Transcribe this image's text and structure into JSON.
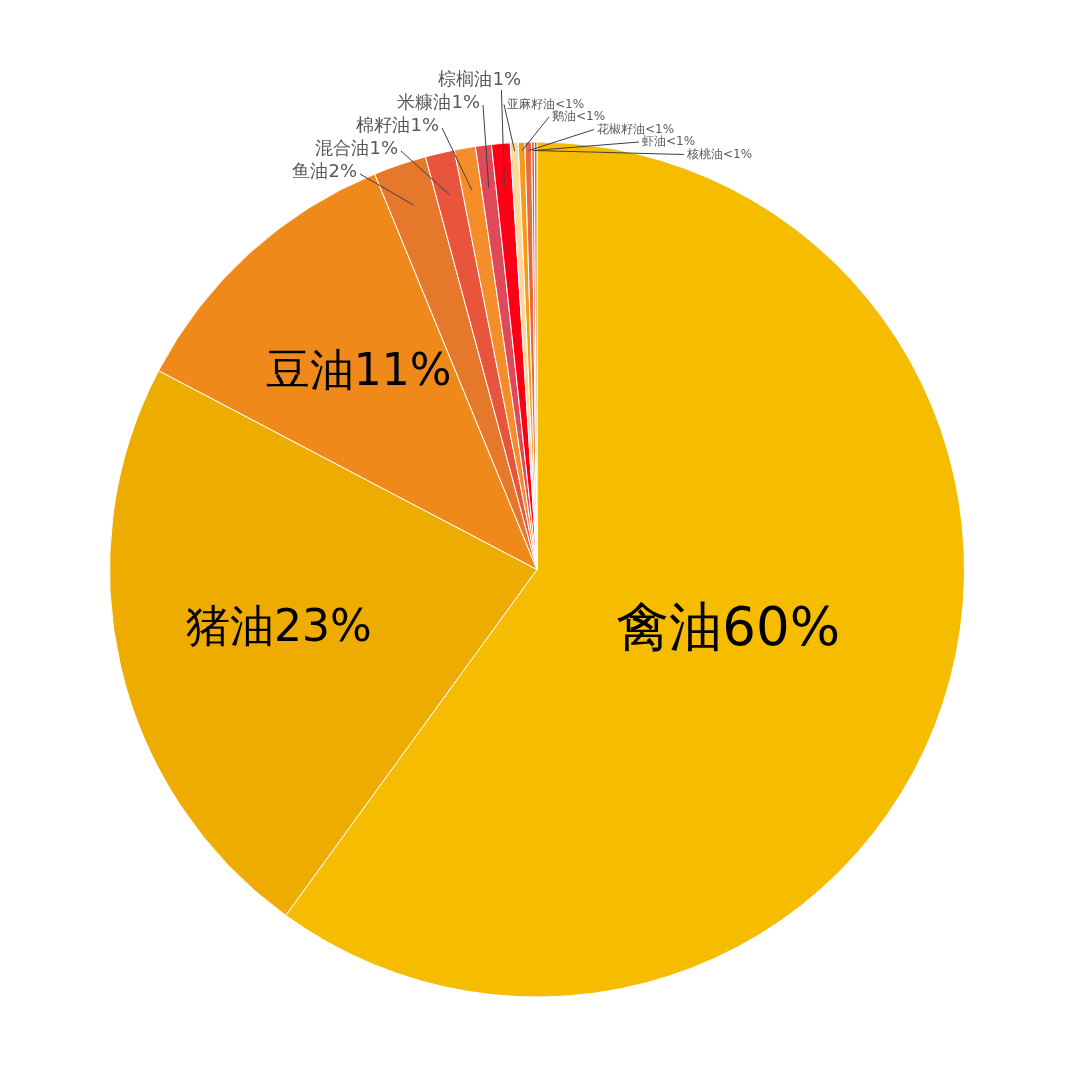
{
  "chart_data": {
    "type": "pie",
    "categories": [
      "禽油",
      "猪油",
      "豆油",
      "鱼油",
      "混合油",
      "棉籽油",
      "米糠油",
      "棕榈油",
      "亚麻籽油",
      "鹅油",
      "花椒籽油",
      "虾油",
      "核桃油"
    ],
    "values": [
      60,
      22.7,
      11.1,
      2,
      1.1,
      0.8,
      0.6,
      0.7,
      0.3,
      0.25,
      0.25,
      0.1,
      0.1
    ],
    "value_labels": [
      "60%",
      "23%",
      "11%",
      "2%",
      "1%",
      "1%",
      "1%",
      "1%",
      "<1%",
      "<1%",
      "<1%",
      "<1%",
      "<1%"
    ],
    "colors": [
      "#f5bc00",
      "#eeab00",
      "#ef8a1a",
      "#e6782c",
      "#e8543c",
      "#f58e2a",
      "#e04a58",
      "#fe0016",
      "#fbd89c",
      "#f29c1a",
      "#e86a40",
      "#dd5a3c",
      "#c8703a"
    ],
    "legend": false
  }
}
